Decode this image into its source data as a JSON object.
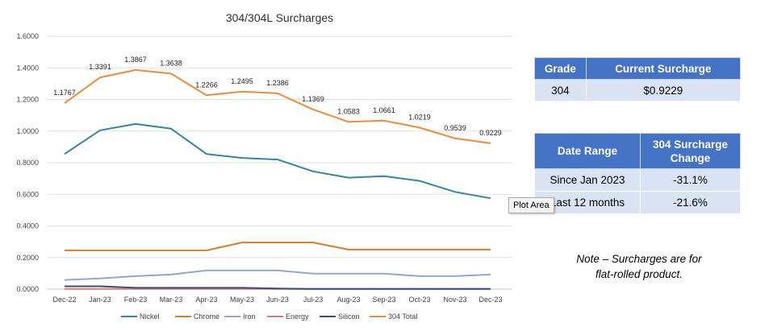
{
  "chart_data": {
    "type": "line",
    "title": "304/304L Surcharges",
    "xlabel": "",
    "ylabel": "",
    "categories": [
      "Dec-22",
      "Jan-23",
      "Feb-23",
      "Mar-23",
      "Apr-23",
      "May-23",
      "Jun-23",
      "Jul-23",
      "Aug-23",
      "Sep-23",
      "Oct-23",
      "Nov-23",
      "Dec-23"
    ],
    "ylim": [
      0,
      1.6
    ],
    "yticks": [
      "0.0000",
      "0.2000",
      "0.4000",
      "0.6000",
      "0.8000",
      "1.0000",
      "1.2000",
      "1.4000",
      "1.6000"
    ],
    "grid": true,
    "legend_position": "bottom",
    "series": [
      {
        "name": "Nickel",
        "color": "#2e87a3",
        "values": [
          0.855,
          1.005,
          1.045,
          1.015,
          0.855,
          0.83,
          0.82,
          0.745,
          0.705,
          0.715,
          0.685,
          0.615,
          0.575
        ]
      },
      {
        "name": "Chrome",
        "color": "#e07b25",
        "values": [
          0.245,
          0.245,
          0.245,
          0.245,
          0.245,
          0.295,
          0.295,
          0.295,
          0.25,
          0.25,
          0.25,
          0.25,
          0.25
        ]
      },
      {
        "name": "Iron",
        "color": "#8ea7d3",
        "values": [
          0.058,
          0.068,
          0.082,
          0.092,
          0.118,
          0.118,
          0.118,
          0.098,
          0.098,
          0.098,
          0.082,
          0.082,
          0.092
        ]
      },
      {
        "name": "Energy",
        "color": "#e07b6a",
        "values": [
          0.001,
          0.001,
          0.001,
          0.001,
          0.001,
          0.001,
          0.001,
          0.001,
          0.001,
          0.001,
          0.001,
          0.001,
          0.001
        ]
      },
      {
        "name": "Silicon",
        "color": "#2f4f88",
        "values": [
          0.018,
          0.018,
          0.008,
          0.008,
          0.008,
          0.008,
          0.004,
          0.001,
          0.001,
          0.001,
          0.001,
          0.001,
          0.001
        ]
      },
      {
        "name": "304 Total",
        "color": "#f08a3a",
        "values": [
          1.1767,
          1.3391,
          1.3867,
          1.3638,
          1.2266,
          1.2495,
          1.2386,
          1.1369,
          1.0583,
          1.0661,
          1.0219,
          0.9539,
          0.9229
        ]
      }
    ],
    "data_labels": [
      "1.1767",
      "1.3391",
      "1.3867",
      "1.3638",
      "1.2266",
      "1.2495",
      "1.2386",
      "1.1369",
      "1.0583",
      "1.0661",
      "1.0219",
      "0.9539",
      "0.9229"
    ]
  },
  "grade_table": {
    "headers": [
      "Grade",
      "Current Surcharge"
    ],
    "row": [
      "304",
      "$0.9229"
    ]
  },
  "range_table": {
    "headers": [
      "Date Range",
      "304 Surcharge Change"
    ],
    "rows": [
      [
        "Since Jan 2023",
        "-31.1%"
      ],
      [
        "Last 12 months",
        "-21.6%"
      ]
    ]
  },
  "note": {
    "line1": "Note – Surcharges are for",
    "line2": "flat-rolled product."
  },
  "tooltip": "Plot Area"
}
